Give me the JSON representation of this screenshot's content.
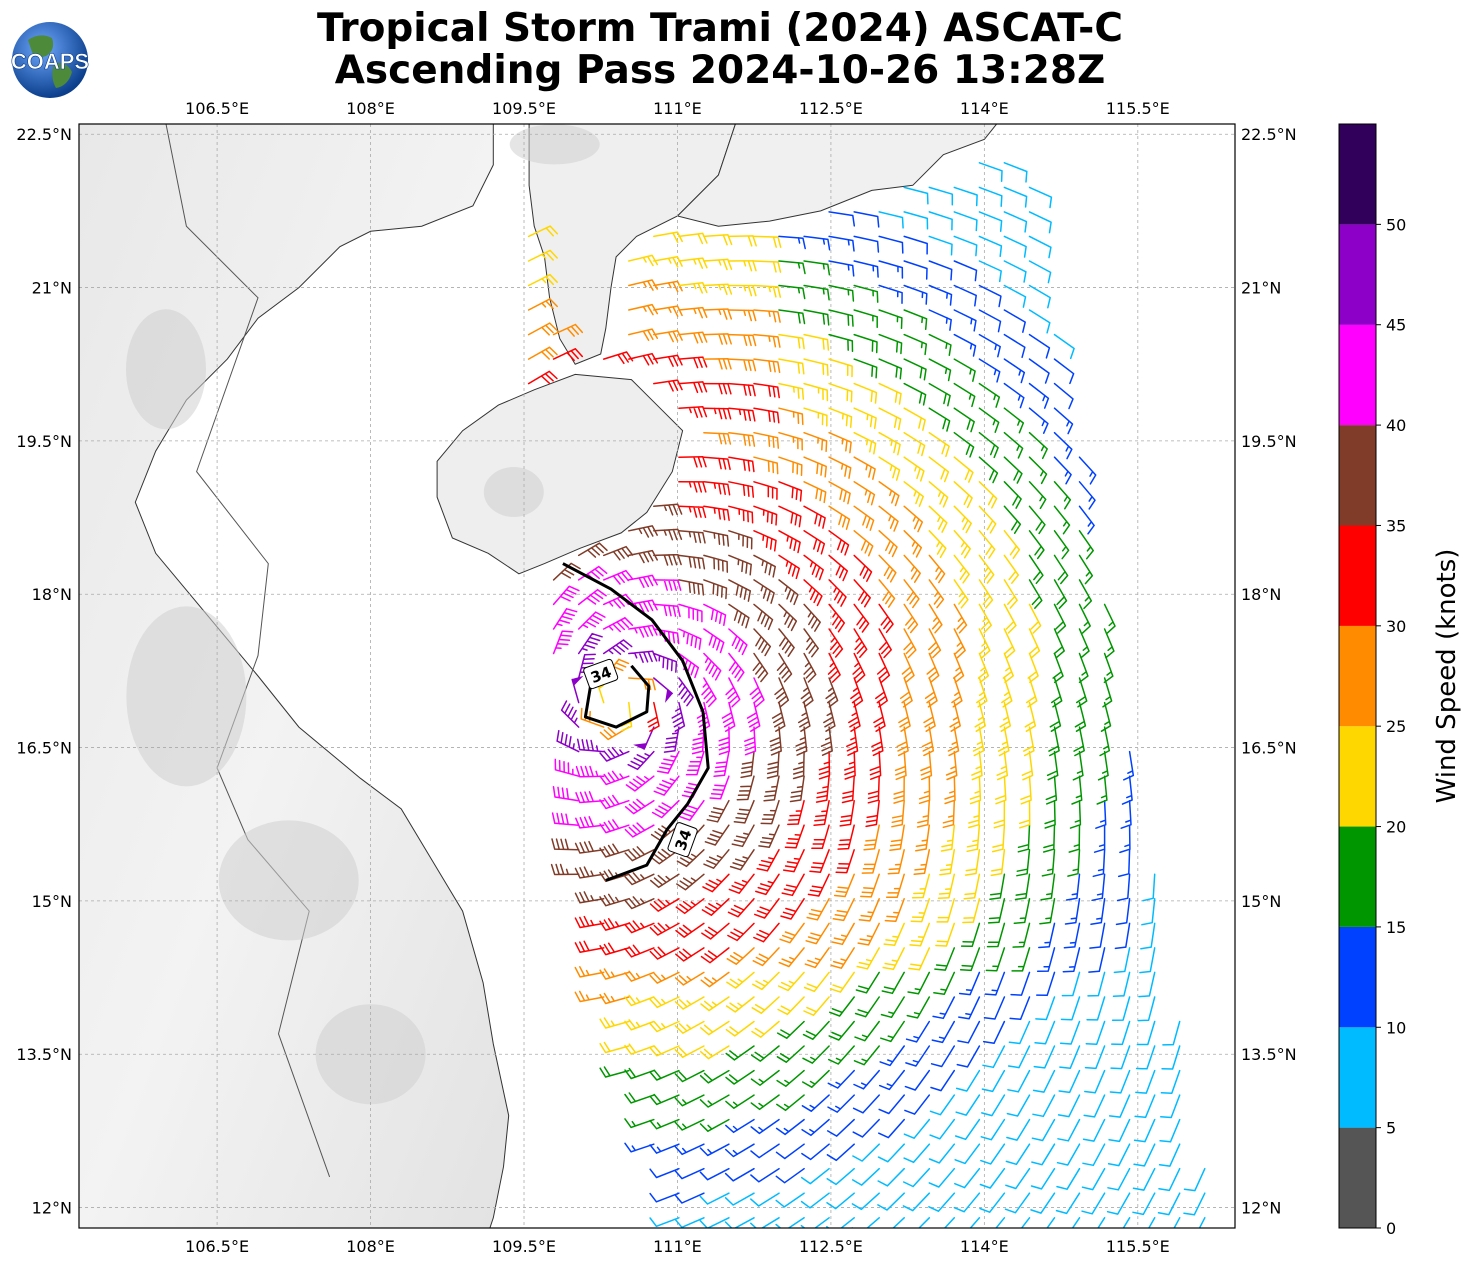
{
  "title": {
    "line1": "Tropical Storm Trami (2024) ASCAT-C",
    "line2": "Ascending Pass 2024-10-26 13:28Z"
  },
  "logo": {
    "text": "COAPS",
    "icon": "globe-icon"
  },
  "map": {
    "lon_range": [
      105.15,
      116.45
    ],
    "lat_range": [
      11.8,
      22.6
    ],
    "lon_ticks": [
      "106.5°E",
      "108°E",
      "109.5°E",
      "111°E",
      "112.5°E",
      "114°E",
      "115.5°E"
    ],
    "lat_ticks": [
      "22.5°N",
      "21°N",
      "19.5°N",
      "18°N",
      "16.5°N",
      "15°N",
      "13.5°N",
      "12°N"
    ],
    "grid": true,
    "contour_label": "34"
  },
  "colorbar": {
    "title": "Wind Speed (knots)",
    "ticks": [
      "0",
      "5",
      "10",
      "15",
      "20",
      "25",
      "30",
      "35",
      "40",
      "45",
      "50"
    ],
    "bins": [
      {
        "min": 0,
        "max": 5,
        "color": "#555555"
      },
      {
        "min": 5,
        "max": 10,
        "color": "#00bbff"
      },
      {
        "min": 10,
        "max": 15,
        "color": "#0040ff"
      },
      {
        "min": 15,
        "max": 20,
        "color": "#009600"
      },
      {
        "min": 20,
        "max": 25,
        "color": "#ffd700"
      },
      {
        "min": 25,
        "max": 30,
        "color": "#ff8c00"
      },
      {
        "min": 30,
        "max": 35,
        "color": "#ff0000"
      },
      {
        "min": 35,
        "max": 40,
        "color": "#803c28"
      },
      {
        "min": 40,
        "max": 45,
        "color": "#ff00ff"
      },
      {
        "min": 45,
        "max": 50,
        "color": "#8c00c8"
      },
      {
        "min": 50,
        "max": 55,
        "color": "#30005a"
      }
    ]
  },
  "storm": {
    "center_lon": 110.45,
    "center_lat": 16.95
  }
}
